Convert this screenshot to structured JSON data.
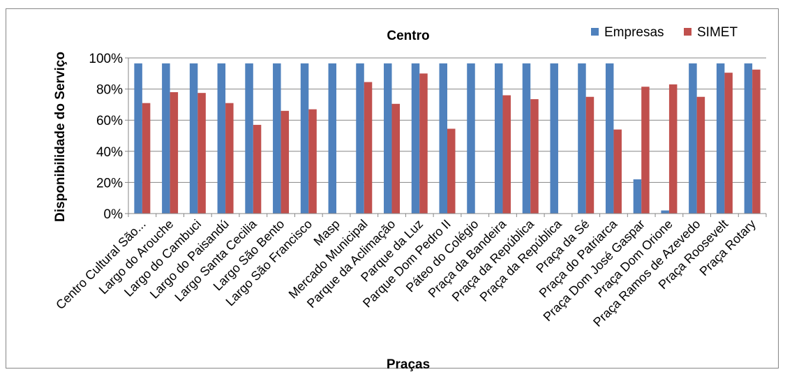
{
  "chart_data": {
    "type": "bar",
    "title": "Centro",
    "xlabel": "Praças",
    "ylabel": "Disponibilidade do Serviço",
    "ylim": [
      0,
      100
    ],
    "yticks": [
      "0%",
      "20%",
      "40%",
      "60%",
      "80%",
      "100%"
    ],
    "grid": true,
    "legend_position": "top-right",
    "categories": [
      "Centro Cultural São...",
      "Largo do Arouche",
      "Largo do Cambuci",
      "Largo do Paisandú",
      "Largo Santa Cecilia",
      "Largo São Bento",
      "Largo São Francisco",
      "Masp",
      "Mercado Municipal",
      "Parque da Aclimação",
      "Parque da Luz",
      "Parque Dom Pedro II",
      "Páteo do Colégio",
      "Praça da Bandeira",
      "Praça da República",
      "Praça da República",
      "Praça da Sé",
      "Praça do Patriarca",
      "Praça Dom José Gaspar",
      "Praça Dom Orione",
      "Praça Ramos de Azevedo",
      "Praça Roosevelt",
      "Praça Rotary"
    ],
    "series": [
      {
        "name": "Empresas",
        "color": "#4F81BD",
        "values": [
          96.5,
          96.5,
          96.5,
          96.5,
          96.5,
          96.5,
          96.5,
          96.5,
          96.5,
          96.5,
          96.5,
          96.5,
          96.5,
          96.5,
          96.5,
          96.5,
          96.5,
          96.5,
          22,
          2,
          96.5,
          96.5,
          96.5
        ]
      },
      {
        "name": "SIMET",
        "color": "#C0504D",
        "values": [
          71,
          78,
          77.5,
          71,
          57,
          66,
          67,
          0,
          84.5,
          70.5,
          90,
          54.5,
          0,
          76,
          73.5,
          0,
          75,
          54,
          81.5,
          83,
          75,
          90.5,
          92.5
        ]
      }
    ]
  }
}
